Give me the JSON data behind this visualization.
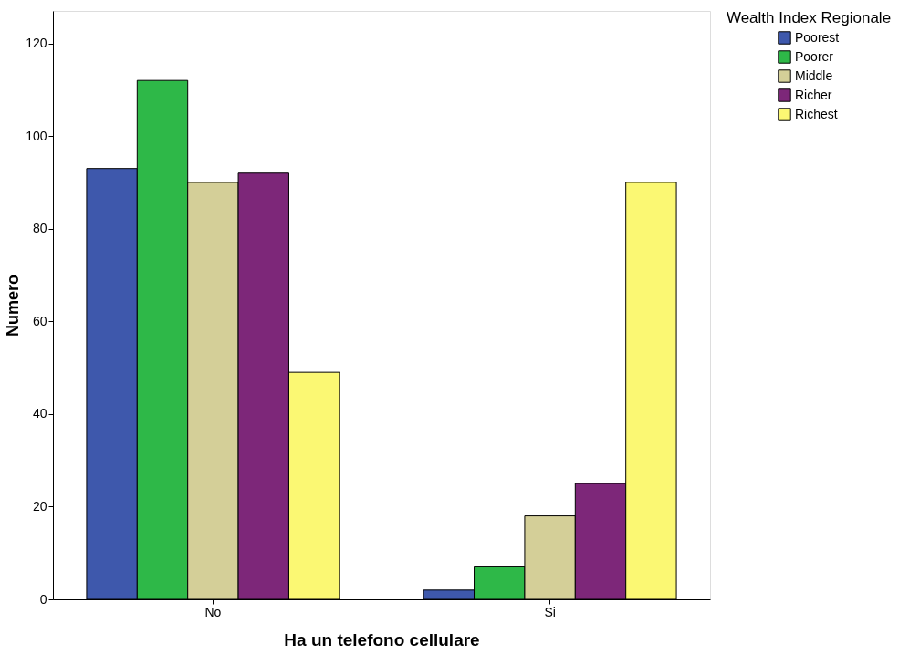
{
  "chart_data": {
    "type": "bar",
    "xlabel": "Ha un telefono cellulare",
    "ylabel": "Numero",
    "legend_title": "Wealth Index Regionale",
    "categories": [
      "No",
      "Si"
    ],
    "series": [
      {
        "name": "Poorest",
        "color": "#3e58ac",
        "values": [
          93,
          2
        ]
      },
      {
        "name": "Poorer",
        "color": "#2eb848",
        "values": [
          112,
          7
        ]
      },
      {
        "name": "Middle",
        "color": "#d4cf98",
        "values": [
          90,
          18
        ]
      },
      {
        "name": "Richer",
        "color": "#7d2779",
        "values": [
          92,
          25
        ]
      },
      {
        "name": "Richest",
        "color": "#fbf873",
        "values": [
          49,
          90
        ]
      }
    ],
    "ylim": [
      0,
      127
    ],
    "yticks": [
      0,
      20,
      40,
      60,
      80,
      100,
      120
    ],
    "grid": false,
    "legend": "right"
  }
}
